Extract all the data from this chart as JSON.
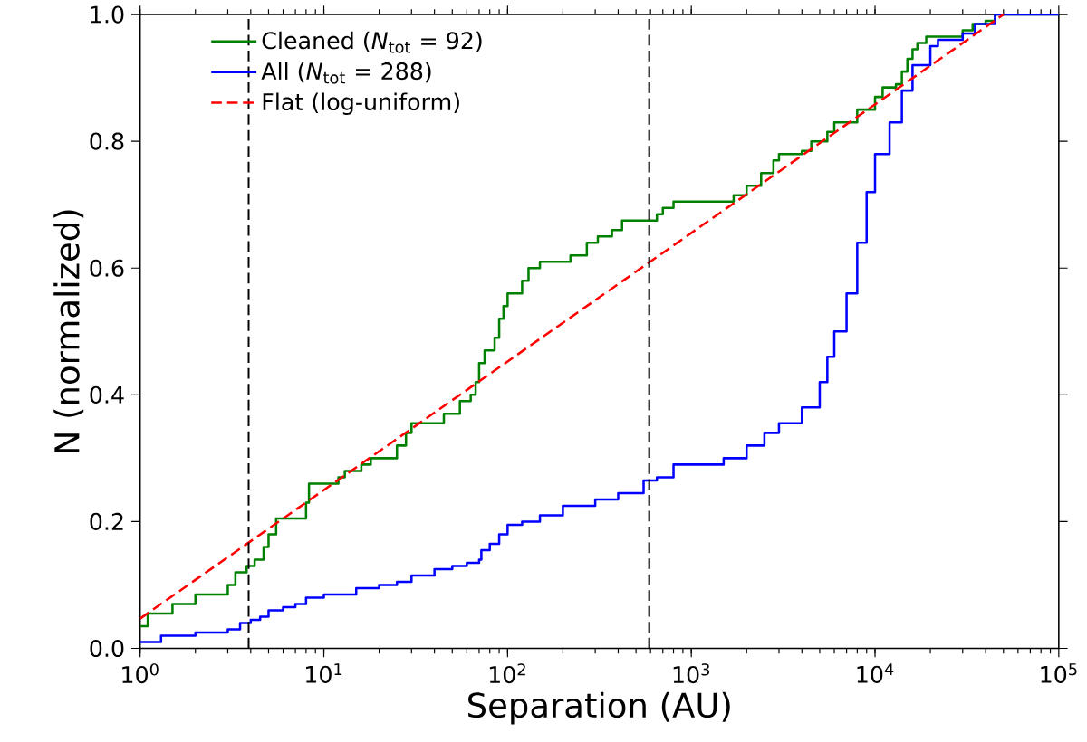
{
  "chart_data": {
    "type": "step",
    "xlabel": "Separation (AU)",
    "ylabel": "N (normalized)",
    "log": "x",
    "legend": "top left",
    "xlim": [
      1,
      100000
    ],
    "ylim": [
      0,
      1
    ],
    "xticks": [
      {
        "value": 1,
        "label": "10$^{0}$"
      },
      {
        "value": 10,
        "label": "10$^{1}$"
      },
      {
        "value": 100,
        "label": "10$^{2}$"
      },
      {
        "value": 1000,
        "label": "10$^{3}$"
      },
      {
        "value": 10000,
        "label": "10$^{4}$"
      },
      {
        "value": 100000,
        "label": "10$^{5}$"
      }
    ],
    "yticks": [
      {
        "value": 0,
        "label": "0.0"
      },
      {
        "value": 0.2,
        "label": "0.2"
      },
      {
        "value": 0.4,
        "label": "0.4"
      },
      {
        "value": 0.6,
        "label": "0.6"
      },
      {
        "value": 0.8,
        "label": "0.8"
      },
      {
        "value": 1,
        "label": "1.0"
      }
    ],
    "series": [
      {
        "name": "Cleaned (*N*$_{tot}$ = 92)",
        "color": "#008000",
        "x": [
          1,
          1.1,
          1.5,
          2,
          3,
          3.3,
          3.8,
          4.2,
          4.7,
          5,
          5.5,
          8,
          8.3,
          12,
          13,
          16,
          18,
          25,
          28,
          30,
          45,
          55,
          63,
          67,
          70,
          75,
          85,
          90,
          95,
          100,
          120,
          130,
          150,
          220,
          270,
          310,
          370,
          420,
          650,
          700,
          800,
          1700,
          2000,
          2400,
          2800,
          3000,
          4000,
          4500,
          5500,
          6000,
          8000,
          10000,
          11000,
          13000,
          14000,
          15000,
          16000,
          17000,
          19000,
          30000,
          34000,
          40000,
          45000,
          100000
        ],
        "values": [
          0.035,
          0.055,
          0.07,
          0.085,
          0.1,
          0.12,
          0.13,
          0.14,
          0.16,
          0.18,
          0.205,
          0.23,
          0.26,
          0.27,
          0.28,
          0.29,
          0.3,
          0.32,
          0.34,
          0.355,
          0.37,
          0.39,
          0.4,
          0.42,
          0.45,
          0.47,
          0.49,
          0.52,
          0.54,
          0.56,
          0.58,
          0.6,
          0.61,
          0.62,
          0.64,
          0.65,
          0.66,
          0.675,
          0.685,
          0.695,
          0.705,
          0.715,
          0.73,
          0.75,
          0.77,
          0.78,
          0.785,
          0.8,
          0.815,
          0.83,
          0.85,
          0.87,
          0.885,
          0.89,
          0.91,
          0.93,
          0.945,
          0.955,
          0.965,
          0.975,
          0.985,
          0.99,
          1.0,
          1.0
        ]
      },
      {
        "name": "All (*N*$_{tot}$ = 288)",
        "color": "#0000ff",
        "x": [
          1,
          1.3,
          2,
          3,
          3.5,
          4,
          4.5,
          5,
          6,
          7,
          8,
          10,
          15,
          20,
          25,
          30,
          40,
          50,
          60,
          70,
          72,
          80,
          90,
          100,
          120,
          150,
          200,
          300,
          400,
          550,
          650,
          800,
          1000,
          1500,
          2000,
          2500,
          3000,
          4000,
          5000,
          5500,
          6000,
          7000,
          8000,
          9000,
          10000,
          12000,
          14000,
          16000,
          20000,
          22000,
          30000,
          35000,
          45000,
          100000
        ],
        "values": [
          0.01,
          0.02,
          0.025,
          0.03,
          0.04,
          0.045,
          0.05,
          0.06,
          0.065,
          0.07,
          0.08,
          0.085,
          0.095,
          0.1,
          0.105,
          0.115,
          0.125,
          0.13,
          0.135,
          0.14,
          0.155,
          0.165,
          0.18,
          0.195,
          0.2,
          0.21,
          0.225,
          0.235,
          0.245,
          0.265,
          0.27,
          0.29,
          0.29,
          0.3,
          0.32,
          0.34,
          0.355,
          0.38,
          0.42,
          0.46,
          0.5,
          0.56,
          0.64,
          0.72,
          0.78,
          0.83,
          0.88,
          0.92,
          0.95,
          0.96,
          0.97,
          0.985,
          1.0,
          1.0
        ]
      },
      {
        "name": "Flat (log-uniform)",
        "color": "#ff0000",
        "type": "line",
        "line_style": "dashed",
        "x": [
          1,
          50000
        ],
        "values": [
          0.047,
          1.0
        ]
      }
    ],
    "ref_lines": [
      {
        "axis": "x",
        "value": 3.9,
        "color": "#000000",
        "line_style": "dashed"
      },
      {
        "axis": "x",
        "value": 590,
        "color": "#000000",
        "line_style": "dashed"
      }
    ]
  }
}
